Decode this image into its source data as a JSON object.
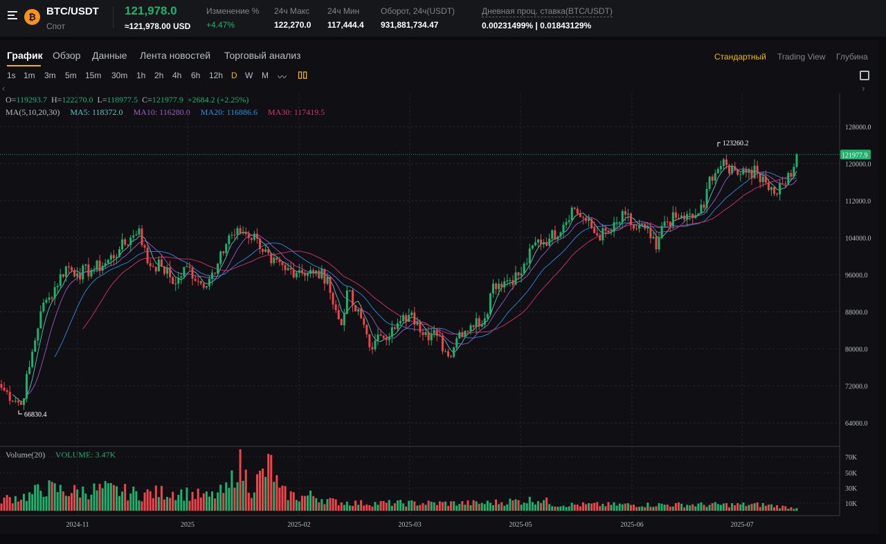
{
  "header": {
    "symbol": "BTC/USDT",
    "market": "Спот",
    "price": "121,978.0",
    "price_usd": "≈121,978.00 USD",
    "stats": [
      {
        "label": "Изменение %",
        "value": "+4.47%",
        "color": "#20b26c"
      },
      {
        "label": "24ч Макс",
        "value": "122,270.0"
      },
      {
        "label": "24ч Мин",
        "value": "117,444.4"
      },
      {
        "label": "Оборот, 24ч(USDT)",
        "value": "931,881,734.47"
      },
      {
        "label": "Дневная проц. ставка(BTC/USDT)",
        "value": "0.00231499% | 0.01843129%"
      }
    ]
  },
  "tabs": [
    "График",
    "Обзор",
    "Данные",
    "Лента новостей",
    "Торговый анализ"
  ],
  "active_tab": "График",
  "view_modes": [
    "Стандартный",
    "Trading View",
    "Глубина"
  ],
  "timeframes": [
    "1s",
    "1m",
    "3m",
    "5m",
    "15m",
    "30m",
    "1h",
    "2h",
    "4h",
    "6h",
    "12h",
    "D",
    "W",
    "M"
  ],
  "active_timeframe": "D",
  "legend": {
    "o_label": "O=",
    "o": "119293.7",
    "h_label": "H=",
    "h": "122270.0",
    "l_label": "L=",
    "l": "118977.5",
    "c_label": "C=",
    "c": "121977.9",
    "change": "+2684.2 (+2.25%)",
    "ma_label": "MA(5,10,20,30)",
    "ma5": "MA5: 118372.0",
    "ma10": "MA10: 116280.0",
    "ma20": "MA20: 116886.6",
    "ma30": "MA30: 117419.5",
    "vol_label": "Volume(20)",
    "vol": "VOLUME: 3.47K"
  },
  "colors": {
    "up": "#20b26c",
    "down": "#ef454a",
    "ma5": "#5ec7c0",
    "ma10": "#9c5cc6",
    "ma20": "#2f8de4",
    "ma30": "#d6336c",
    "accent": "#f0b90b"
  },
  "chart_data": {
    "type": "candlestick",
    "candle_count": 284,
    "close_anchors": [
      [
        0,
        71600
      ],
      [
        7,
        67900
      ],
      [
        10,
        76100
      ],
      [
        14,
        88100
      ],
      [
        17,
        91100
      ],
      [
        23,
        97800
      ],
      [
        27,
        96300
      ],
      [
        32,
        97000
      ],
      [
        37,
        98500
      ],
      [
        42,
        101500
      ],
      [
        47,
        104500
      ],
      [
        49,
        106000
      ],
      [
        52,
        98500
      ],
      [
        57,
        97800
      ],
      [
        62,
        94100
      ],
      [
        66,
        97800
      ],
      [
        71,
        94100
      ],
      [
        76,
        96300
      ],
      [
        81,
        104500
      ],
      [
        86,
        105300
      ],
      [
        91,
        103800
      ],
      [
        96,
        98500
      ],
      [
        101,
        97000
      ],
      [
        106,
        97000
      ],
      [
        111,
        96300
      ],
      [
        116,
        95500
      ],
      [
        118,
        89600
      ],
      [
        121,
        85100
      ],
      [
        123,
        92600
      ],
      [
        126,
        88100
      ],
      [
        128,
        86600
      ],
      [
        132,
        79900
      ],
      [
        135,
        82800
      ],
      [
        140,
        84300
      ],
      [
        145,
        87300
      ],
      [
        148,
        85800
      ],
      [
        151,
        83600
      ],
      [
        155,
        82800
      ],
      [
        159,
        78400
      ],
      [
        163,
        83600
      ],
      [
        167,
        85100
      ],
      [
        172,
        86600
      ],
      [
        175,
        94100
      ],
      [
        180,
        94800
      ],
      [
        185,
        96300
      ],
      [
        190,
        103000
      ],
      [
        195,
        103800
      ],
      [
        200,
        106800
      ],
      [
        203,
        110500
      ],
      [
        207,
        108300
      ],
      [
        212,
        104500
      ],
      [
        217,
        105300
      ],
      [
        222,
        109000
      ],
      [
        225,
        106000
      ],
      [
        229,
        106000
      ],
      [
        233,
        101500
      ],
      [
        236,
        107500
      ],
      [
        241,
        108300
      ],
      [
        246,
        108300
      ],
      [
        250,
        110500
      ],
      [
        252,
        117200
      ],
      [
        256,
        119500
      ],
      [
        261,
        118700
      ],
      [
        266,
        118700
      ],
      [
        271,
        117200
      ],
      [
        275,
        113500
      ],
      [
        278,
        115700
      ],
      [
        281,
        117200
      ],
      [
        282,
        119293.7
      ],
      [
        283,
        121977.9
      ]
    ],
    "volume_anchors_k": [
      [
        0,
        15
      ],
      [
        10,
        20
      ],
      [
        15,
        30
      ],
      [
        25,
        25
      ],
      [
        37,
        28
      ],
      [
        49,
        22
      ],
      [
        62,
        25
      ],
      [
        74,
        18
      ],
      [
        81,
        28
      ],
      [
        84,
        65
      ],
      [
        89,
        30
      ],
      [
        96,
        60
      ],
      [
        99,
        25
      ],
      [
        106,
        18
      ],
      [
        111,
        20
      ],
      [
        118,
        12
      ],
      [
        128,
        10
      ],
      [
        148,
        10
      ],
      [
        172,
        10
      ],
      [
        192,
        15
      ],
      [
        197,
        8
      ],
      [
        222,
        8
      ],
      [
        246,
        8
      ],
      [
        271,
        8
      ],
      [
        283,
        3.47
      ]
    ],
    "y_ticks": [
      "128000.0",
      "120000.0",
      "112000.0",
      "104000.0",
      "96000.0",
      "88000.0",
      "80000.0",
      "72000.0",
      "64000.0"
    ],
    "y_range": [
      60000,
      128000
    ],
    "vol_ticks": [
      "70K",
      "50K",
      "30K",
      "10K"
    ],
    "x_ticks": [
      "2024-11",
      "2025",
      "2025-02",
      "2025-03",
      "2025-05",
      "2025-06",
      "2025-07"
    ],
    "max_label": "123260.2",
    "min_label": "66830.4",
    "last_price_label": "121977.9"
  }
}
